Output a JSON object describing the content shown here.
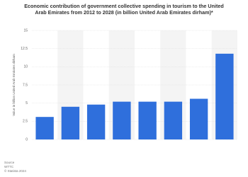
{
  "chart_data": {
    "type": "bar",
    "title": "Economic contribution of government collective spending in tourism to the United Arab Emirates from 2012 to 2028 (in billion United Arab Emirates dirham)*",
    "y_label": "Value in billion United Arab Emirates dirham",
    "categories": [
      null,
      null,
      null,
      null,
      null,
      null,
      null,
      null
    ],
    "values": [
      3.1,
      4.5,
      4.8,
      5.2,
      5.2,
      5.2,
      5.6,
      11.8
    ],
    "color": "#2f6fdc",
    "ylim": [
      0,
      15
    ],
    "yticks": [
      0,
      2.5,
      5,
      7.5,
      10,
      12.5,
      15
    ],
    "grid": true,
    "source": [
      "Source",
      "WTTC",
      "© Statista 2024"
    ]
  }
}
